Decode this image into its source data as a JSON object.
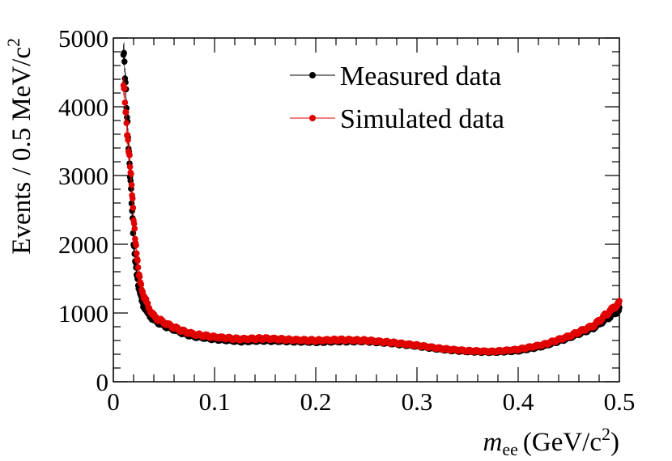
{
  "chart_data": {
    "type": "scatter",
    "title": "",
    "xlabel": {
      "var": "m",
      "sub": "ee",
      "unit": "(GeV/c",
      "sup": "2",
      "close": ")"
    },
    "ylabel": {
      "text": "Events / 0.5 MeV/c",
      "sup": "2"
    },
    "xlim": [
      0,
      0.5
    ],
    "ylim": [
      0,
      5000
    ],
    "x_ticks": [
      {
        "value": 0,
        "label": "0"
      },
      {
        "value": 0.1,
        "label": "0.1"
      },
      {
        "value": 0.2,
        "label": "0.2"
      },
      {
        "value": 0.3,
        "label": "0.3"
      },
      {
        "value": 0.4,
        "label": "0.4"
      },
      {
        "value": 0.5,
        "label": "0.5"
      }
    ],
    "y_ticks": [
      {
        "value": 0,
        "label": "0"
      },
      {
        "value": 1000,
        "label": "1000"
      },
      {
        "value": 2000,
        "label": "2000"
      },
      {
        "value": 3000,
        "label": "3000"
      },
      {
        "value": 4000,
        "label": "4000"
      },
      {
        "value": 5000,
        "label": "5000"
      }
    ],
    "grid": false,
    "legend_position": "top-right",
    "series": [
      {
        "name": "Measured data",
        "color": "#000000",
        "bin_width": 0.0005,
        "x": [
          0.01,
          0.015,
          0.02,
          0.025,
          0.03,
          0.035,
          0.04,
          0.05,
          0.06,
          0.07,
          0.08,
          0.1,
          0.125,
          0.15,
          0.175,
          0.2,
          0.225,
          0.25,
          0.275,
          0.3,
          0.325,
          0.35,
          0.375,
          0.4,
          0.425,
          0.45,
          0.475,
          0.5
        ],
        "y": [
          4800,
          3500,
          2000,
          1350,
          1100,
          980,
          900,
          820,
          760,
          700,
          660,
          620,
          590,
          600,
          590,
          580,
          590,
          590,
          560,
          520,
          470,
          440,
          430,
          450,
          520,
          640,
          790,
          1050
        ]
      },
      {
        "name": "Simulated data",
        "color": "#e00000",
        "bin_width": 0.0005,
        "x": [
          0.01,
          0.015,
          0.02,
          0.025,
          0.03,
          0.035,
          0.04,
          0.05,
          0.06,
          0.07,
          0.08,
          0.1,
          0.125,
          0.15,
          0.175,
          0.2,
          0.225,
          0.25,
          0.275,
          0.3,
          0.325,
          0.35,
          0.375,
          0.4,
          0.425,
          0.45,
          0.475,
          0.5
        ],
        "y": [
          4300,
          3450,
          2400,
          1550,
          1250,
          1080,
          950,
          860,
          790,
          730,
          690,
          650,
          620,
          630,
          610,
          600,
          610,
          600,
          570,
          530,
          480,
          450,
          440,
          470,
          540,
          660,
          820,
          1150
        ]
      }
    ]
  }
}
